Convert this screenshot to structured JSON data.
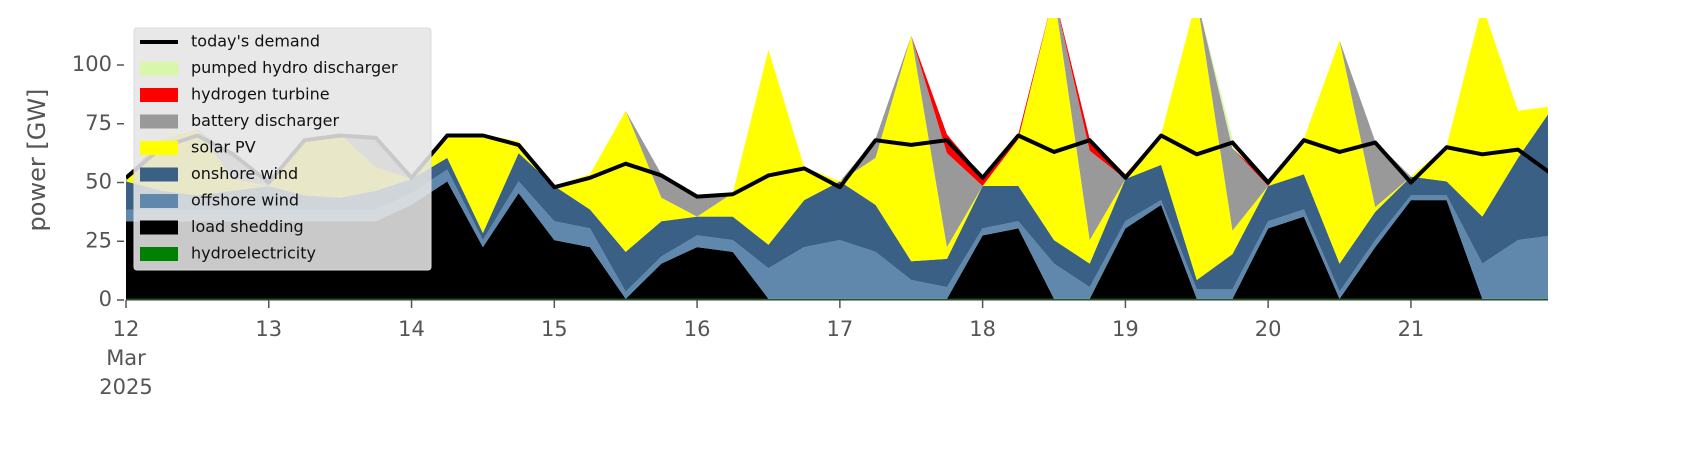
{
  "chart_data": {
    "type": "stacked_area",
    "y_label": "power [GW]",
    "x": [
      12,
      12.25,
      12.5,
      12.75,
      13,
      13.25,
      13.5,
      13.75,
      14,
      14.25,
      14.5,
      14.75,
      15,
      15.25,
      15.5,
      15.75,
      16,
      16.25,
      16.5,
      16.75,
      17,
      17.25,
      17.5,
      17.75,
      18,
      18.25,
      18.5,
      18.75,
      19,
      19.25,
      19.5,
      19.75,
      20,
      20.25,
      20.5,
      20.75,
      21,
      21.25,
      21.5,
      21.75,
      22
    ],
    "xlim": [
      12,
      21.96
    ],
    "xticks": [
      {
        "value": 12,
        "label": "12\nMar\n2025"
      },
      13,
      14,
      15,
      16,
      17,
      18,
      19,
      20,
      21
    ],
    "ylim": [
      0,
      120
    ],
    "yticks": [
      0,
      25,
      50,
      75,
      100
    ],
    "legend": "upper left",
    "demand": {
      "name": "today's demand",
      "color": "#000000",
      "values": [
        52,
        65,
        70,
        62,
        50,
        68,
        70,
        69,
        52,
        70,
        70,
        66,
        48,
        52,
        58,
        53,
        44,
        45,
        53,
        56,
        48,
        68,
        66,
        68,
        52,
        70,
        63,
        68,
        52,
        70,
        62,
        67,
        50,
        68,
        63,
        67,
        50,
        65,
        62,
        64,
        53
      ]
    },
    "series": [
      {
        "name": "hydroelectricity",
        "color": "#008000",
        "values": [
          0.5,
          0.5,
          0.5,
          0.5,
          0.5,
          0.5,
          0.5,
          0.5,
          0.5,
          0.5,
          0.5,
          0.5,
          0.5,
          0.5,
          0.5,
          0.5,
          0.5,
          0.5,
          0.5,
          0.5,
          0.5,
          0.5,
          0.5,
          0.5,
          0.5,
          0.5,
          0.5,
          0.5,
          0.5,
          0.5,
          0.5,
          0.5,
          0.5,
          0.5,
          0.5,
          0.5,
          0.5,
          0.5,
          0.5,
          0.5,
          0.5
        ]
      },
      {
        "name": "load shedding",
        "color": "#000000",
        "values": [
          33,
          33,
          33,
          33,
          33,
          33,
          33,
          33,
          40,
          50,
          22,
          45,
          25,
          22,
          0,
          15,
          22,
          20,
          0,
          0,
          0,
          0,
          0,
          0,
          27,
          30,
          0,
          0,
          30,
          40,
          0,
          0,
          30,
          35,
          0,
          22,
          42,
          42,
          0,
          0,
          0
        ]
      },
      {
        "name": "offshore wind",
        "color": "#5f88ac",
        "values": [
          5,
          5,
          5,
          5,
          5,
          5,
          5,
          5,
          5,
          5,
          3,
          5,
          8,
          8,
          3,
          3,
          5,
          5,
          13,
          22,
          25,
          20,
          8,
          5,
          3,
          3,
          15,
          5,
          3,
          2,
          4,
          4,
          3,
          3,
          3,
          3,
          2,
          2,
          15,
          25,
          27
        ]
      },
      {
        "name": "onshore wind",
        "color": "#3a6185",
        "values": [
          12,
          8,
          6,
          8,
          10,
          6,
          5,
          8,
          6,
          5,
          3,
          12,
          15,
          8,
          17,
          15,
          8,
          10,
          10,
          20,
          25,
          20,
          8,
          12,
          18,
          15,
          10,
          10,
          18,
          15,
          4,
          15,
          15,
          15,
          12,
          12,
          8,
          6,
          20,
          35,
          55
        ]
      },
      {
        "name": "solar PV",
        "color": "#ffff00",
        "values": [
          0,
          22,
          28,
          5,
          0,
          24,
          27,
          10,
          0,
          10,
          42,
          5,
          0,
          15,
          60,
          10,
          0,
          10,
          83,
          14,
          0,
          20,
          96,
          5,
          0,
          20,
          105,
          10,
          0,
          13,
          120,
          10,
          0,
          15,
          95,
          2,
          0,
          15,
          90,
          20,
          0
        ]
      },
      {
        "name": "battery discharger",
        "color": "#999999",
        "values": [
          2,
          0,
          0,
          10,
          2,
          0,
          0,
          12,
          0,
          0,
          0,
          0,
          0,
          0,
          0,
          10,
          9,
          0,
          0,
          0,
          0,
          8,
          0,
          40,
          0,
          0,
          0,
          38,
          0,
          0,
          0,
          35,
          0,
          0,
          0,
          28,
          0,
          0,
          0,
          0,
          0
        ]
      },
      {
        "name": "hydrogen turbine",
        "color": "#ff0000",
        "values": [
          0,
          0,
          0,
          0,
          0,
          0,
          0,
          0,
          0,
          0,
          0,
          0,
          0,
          0,
          0,
          0,
          0,
          0,
          0,
          0,
          0,
          0,
          0,
          8,
          4,
          2,
          0,
          5,
          2,
          0,
          0,
          0,
          2,
          0,
          0,
          0,
          0,
          0,
          0,
          0,
          0
        ]
      },
      {
        "name": "pumped hydro discharger",
        "color": "#d9f7a8",
        "values": [
          0,
          0,
          0,
          0,
          0,
          0,
          0,
          0,
          0,
          0,
          0,
          0,
          0,
          0,
          0,
          0,
          0,
          0,
          0,
          0,
          0,
          0,
          0,
          0,
          0,
          0,
          0,
          0,
          0,
          0,
          0,
          4,
          0,
          0,
          0,
          0,
          0,
          0,
          0,
          0,
          0
        ]
      }
    ]
  }
}
